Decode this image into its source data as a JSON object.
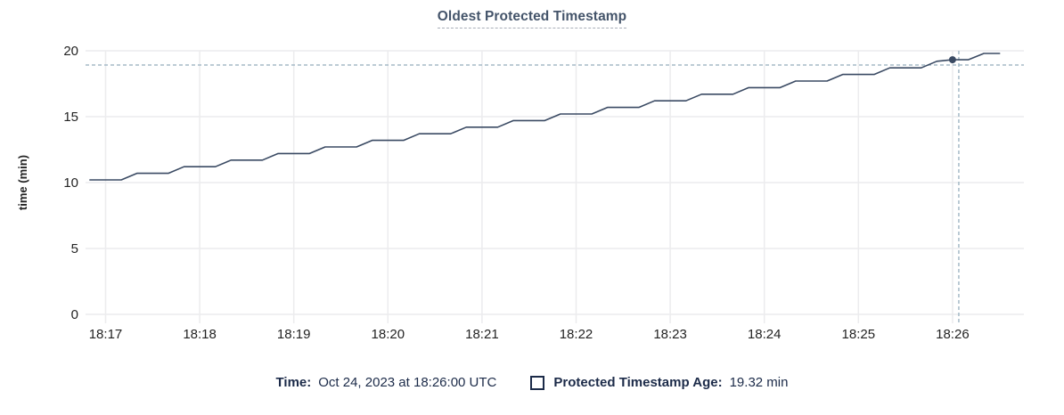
{
  "title": "Oldest Protected Timestamp",
  "tooltip": {
    "time_label": "Time:",
    "time_value": "Oct 24, 2023 at 18:26:00 UTC",
    "series_label": "Protected Timestamp Age:",
    "series_value": "19.32 min"
  },
  "chart_data": {
    "type": "line",
    "title": "Oldest Protected Timestamp",
    "xlabel": "",
    "ylabel": "time (min)",
    "ylim": [
      0,
      20
    ],
    "yticks": [
      0,
      5,
      10,
      15,
      20
    ],
    "xticks": [
      "18:17",
      "18:18",
      "18:19",
      "18:20",
      "18:21",
      "18:22",
      "18:23",
      "18:24",
      "18:25",
      "18:26"
    ],
    "grid": true,
    "legend_position": "bottom",
    "series": [
      {
        "name": "Protected Timestamp Age",
        "unit": "min",
        "points": [
          [
            "18:16:50",
            10.2
          ],
          [
            "18:17:10",
            10.2
          ],
          [
            "18:17:20",
            10.7
          ],
          [
            "18:17:40",
            10.7
          ],
          [
            "18:17:50",
            11.2
          ],
          [
            "18:18:10",
            11.2
          ],
          [
            "18:18:20",
            11.7
          ],
          [
            "18:18:40",
            11.7
          ],
          [
            "18:18:50",
            12.2
          ],
          [
            "18:19:10",
            12.2
          ],
          [
            "18:19:20",
            12.7
          ],
          [
            "18:19:40",
            12.7
          ],
          [
            "18:19:50",
            13.2
          ],
          [
            "18:20:10",
            13.2
          ],
          [
            "18:20:20",
            13.7
          ],
          [
            "18:20:40",
            13.7
          ],
          [
            "18:20:50",
            14.2
          ],
          [
            "18:21:10",
            14.2
          ],
          [
            "18:21:20",
            14.7
          ],
          [
            "18:21:40",
            14.7
          ],
          [
            "18:21:50",
            15.2
          ],
          [
            "18:22:10",
            15.2
          ],
          [
            "18:22:20",
            15.7
          ],
          [
            "18:22:40",
            15.7
          ],
          [
            "18:22:50",
            16.2
          ],
          [
            "18:23:10",
            16.2
          ],
          [
            "18:23:20",
            16.7
          ],
          [
            "18:23:40",
            16.7
          ],
          [
            "18:23:50",
            17.2
          ],
          [
            "18:24:10",
            17.2
          ],
          [
            "18:24:20",
            17.7
          ],
          [
            "18:24:40",
            17.7
          ],
          [
            "18:24:50",
            18.2
          ],
          [
            "18:25:10",
            18.2
          ],
          [
            "18:25:20",
            18.7
          ],
          [
            "18:25:40",
            18.7
          ],
          [
            "18:25:50",
            19.2
          ],
          [
            "18:26:00",
            19.32
          ],
          [
            "18:26:10",
            19.32
          ],
          [
            "18:26:20",
            19.8
          ],
          [
            "18:26:30",
            19.8
          ]
        ]
      }
    ],
    "highlight": {
      "time": "18:26:00",
      "value": 19.32
    },
    "crosshair": {
      "time": "18:26:04",
      "value": 18.92
    },
    "colors": {
      "line": "#3a4a63",
      "dot": "#3a4a63",
      "grid": "#ececee",
      "crosshair": "#a5bac7",
      "axis_text": "#232323",
      "title": "#44546a",
      "legend_text": "#1c2b49"
    }
  }
}
